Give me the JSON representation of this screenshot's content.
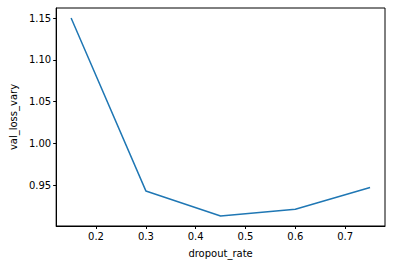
{
  "chart_data": {
    "type": "line",
    "x_label": "dropout_rate",
    "y_label": "val_loss_vary",
    "x": [
      0.15,
      0.3,
      0.45,
      0.6,
      0.75
    ],
    "values": [
      1.15,
      0.943,
      0.913,
      0.921,
      0.947
    ],
    "color": "#1f77b4",
    "xlim": [
      0.12,
      0.78
    ],
    "xticks": [
      0.2,
      0.3,
      0.4,
      0.5,
      0.6,
      0.7
    ],
    "ylim": [
      0.901,
      1.162
    ],
    "yticks": [
      0.95,
      {
        "value": 1,
        "label": "1.00"
      },
      1.05,
      {
        "value": 1.1,
        "label": "1.10"
      },
      1.15
    ],
    "grid": false
  }
}
